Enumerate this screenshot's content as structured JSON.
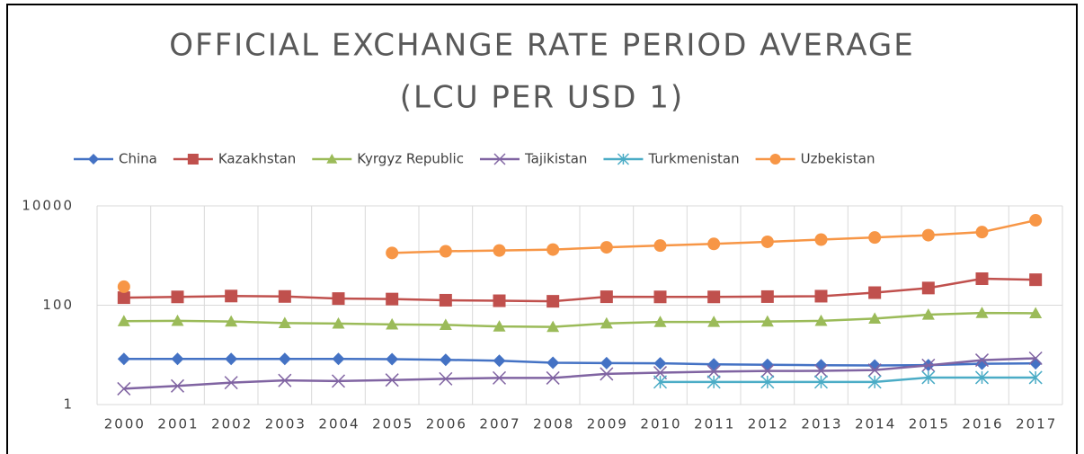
{
  "chart_data": {
    "type": "line",
    "title": [
      "OFFICIAL EXCHANGE RATE PERIOD AVERAGE",
      "(LCU PER USD 1)"
    ],
    "categories": [
      "2000",
      "2001",
      "2002",
      "2003",
      "2004",
      "2005",
      "2006",
      "2007",
      "2008",
      "2009",
      "2010",
      "2011",
      "2012",
      "2013",
      "2014",
      "2015",
      "2016",
      "2017"
    ],
    "log_scale": true,
    "ylim": [
      1,
      10000
    ],
    "yticks": [
      1,
      100,
      10000
    ],
    "grid": true,
    "legend": "top",
    "series": [
      {
        "name": "China",
        "color": "#4472c4",
        "marker": "diamond",
        "values": [
          8.28,
          8.28,
          8.28,
          8.28,
          8.28,
          8.19,
          7.97,
          7.61,
          6.95,
          6.83,
          6.77,
          6.46,
          6.31,
          6.2,
          6.14,
          6.23,
          6.64,
          6.76
        ]
      },
      {
        "name": "Kazakhstan",
        "color": "#c0504d",
        "marker": "square",
        "values": [
          142,
          147,
          153,
          150,
          136,
          133,
          126,
          123,
          120,
          148,
          147,
          147,
          149,
          152,
          179,
          222,
          342,
          326
        ]
      },
      {
        "name": "Kyrgyz Republic",
        "color": "#9bbb59",
        "marker": "triangle",
        "values": [
          47.7,
          48.4,
          46.9,
          43.6,
          42.7,
          41,
          40.2,
          37.3,
          36.6,
          42.9,
          46,
          46.1,
          47,
          48.4,
          53.7,
          64.5,
          69.9,
          68.9
        ]
      },
      {
        "name": "Tajikistan",
        "color": "#8064a2",
        "marker": "x",
        "values": [
          2.08,
          2.37,
          2.76,
          3.06,
          2.97,
          3.12,
          3.3,
          3.44,
          3.43,
          4.14,
          4.38,
          4.61,
          4.74,
          4.76,
          4.94,
          6.16,
          7.84,
          8.55
        ]
      },
      {
        "name": "Turkmenistan",
        "color": "#4bacc6",
        "marker": "star",
        "values": [
          null,
          null,
          null,
          null,
          null,
          null,
          null,
          null,
          null,
          null,
          2.85,
          2.85,
          2.85,
          2.85,
          2.85,
          3.5,
          3.5,
          3.5
        ]
      },
      {
        "name": "Uzbekistan",
        "color": "#f79646",
        "marker": "circle",
        "values": [
          236,
          null,
          null,
          null,
          null,
          1128,
          1219,
          1264,
          1320,
          1466,
          1588,
          1715,
          1890,
          2095,
          2312,
          2569,
          2966,
          5121
        ]
      }
    ]
  }
}
